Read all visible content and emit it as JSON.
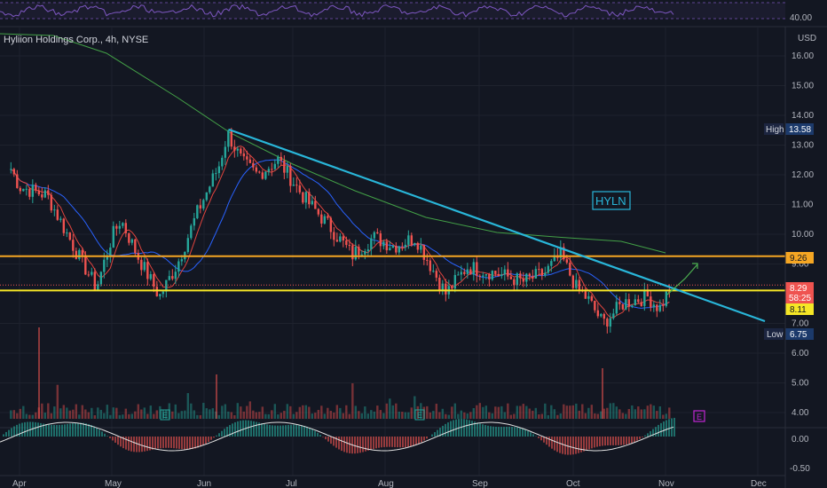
{
  "symbol": {
    "title": "Hyliion Holdings Corp., 4h, NYSE",
    "ticker_box": "HYLN"
  },
  "currency": "USD",
  "y_axis": {
    "ticks": [
      "16.00",
      "15.00",
      "14.00",
      "13.00",
      "12.00",
      "11.00",
      "10.00",
      "9.00",
      "7.00",
      "6.00",
      "5.00",
      "4.00"
    ],
    "rsi_tick": "40.00",
    "osc_ticks": [
      "0.00",
      "-0.50"
    ]
  },
  "x_axis": {
    "ticks": [
      "Apr",
      "May",
      "Jun",
      "Jul",
      "Aug",
      "Sep",
      "Oct",
      "Nov",
      "Dec"
    ]
  },
  "tags": {
    "high_label": "High",
    "high_value": "13.58",
    "low_label": "Low",
    "low_value": "6.75",
    "resistance": "9.26",
    "price": "8.29",
    "countdown": "58:25",
    "support": "8.11"
  },
  "earnings_marker": "E",
  "colors": {
    "bg": "#131722",
    "up": "#26a69a",
    "down": "#ef5350",
    "resistance_line": "#f5a623",
    "support_line": "#f5e626",
    "trendline": "#29b6d9",
    "ma_short": "#e0443e",
    "ma_blue": "#2962ff",
    "ma_green": "#43a047",
    "rsi": "#7e57c2",
    "projection": "#4caf50"
  },
  "chart_data": {
    "type": "candlestick",
    "interval": "4h",
    "ylim": [
      4.0,
      16.0
    ],
    "resistance_level": 9.26,
    "support_level": 8.11,
    "high": 13.58,
    "low": 6.75,
    "last_price": 8.29,
    "anchor_closes": [
      {
        "x": "Mar 22",
        "y": 12.2
      },
      {
        "x": "Apr 1",
        "y": 11.6
      },
      {
        "x": "Apr 10",
        "y": 11.3
      },
      {
        "x": "Apr 20",
        "y": 9.3
      },
      {
        "x": "Apr 26",
        "y": 8.2
      },
      {
        "x": "May 1",
        "y": 9.9
      },
      {
        "x": "May 4",
        "y": 10.5
      },
      {
        "x": "May 10",
        "y": 9.2
      },
      {
        "x": "May 17",
        "y": 7.9
      },
      {
        "x": "May 23",
        "y": 9.0
      },
      {
        "x": "May 30",
        "y": 10.8
      },
      {
        "x": "Jun 6",
        "y": 12.3
      },
      {
        "x": "Jun 9",
        "y": 13.4
      },
      {
        "x": "Jun 14",
        "y": 12.4
      },
      {
        "x": "Jun 19",
        "y": 12.0
      },
      {
        "x": "Jun 26",
        "y": 12.5
      },
      {
        "x": "Jul 5",
        "y": 11.2
      },
      {
        "x": "Jul 13",
        "y": 10.3
      },
      {
        "x": "Jul 21",
        "y": 9.3
      },
      {
        "x": "Jul 28",
        "y": 9.9
      },
      {
        "x": "Aug 4",
        "y": 9.6
      },
      {
        "x": "Aug 11",
        "y": 9.9
      },
      {
        "x": "Aug 21",
        "y": 8.0
      },
      {
        "x": "Aug 28",
        "y": 8.9
      },
      {
        "x": "Sep 6",
        "y": 8.7
      },
      {
        "x": "Sep 15",
        "y": 8.4
      },
      {
        "x": "Sep 22",
        "y": 8.7
      },
      {
        "x": "Sep 27",
        "y": 9.3
      },
      {
        "x": "Oct 2",
        "y": 8.2
      },
      {
        "x": "Oct 6",
        "y": 7.8
      },
      {
        "x": "Oct 11",
        "y": 7.0
      },
      {
        "x": "Oct 18",
        "y": 7.7
      },
      {
        "x": "Oct 26",
        "y": 7.9
      },
      {
        "x": "Oct 30",
        "y": 7.5
      },
      {
        "x": "Nov 3",
        "y": 8.29
      }
    ]
  }
}
